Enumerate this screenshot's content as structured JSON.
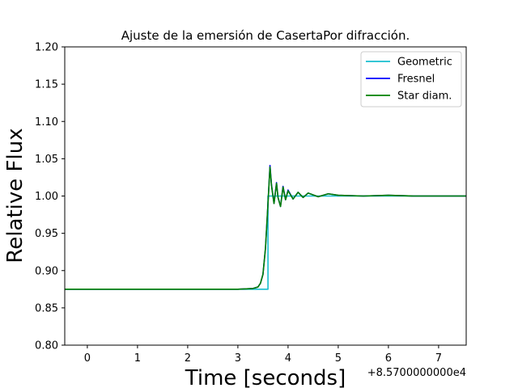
{
  "chart_data": {
    "type": "line",
    "title": "Ajuste de la emersión de CasertaPor difracción.",
    "xlabel": "Time [seconds]",
    "ylabel": "Relative Flux",
    "x_offset_label": "+8.5700000000e4",
    "xlim": [
      -0.45,
      7.55
    ],
    "ylim": [
      0.8,
      1.2
    ],
    "x_ticks": [
      "0",
      "1",
      "2",
      "3",
      "4",
      "5",
      "6",
      "7"
    ],
    "y_ticks": [
      "0.80",
      "0.85",
      "0.90",
      "0.95",
      "1.00",
      "1.05",
      "1.10",
      "1.15",
      "1.20"
    ],
    "grid": false,
    "legend_position": "top-right",
    "series": [
      {
        "name": "Geometric",
        "color": "#17becf",
        "x": [
          -0.45,
          3.55,
          3.55,
          3.6,
          3.6,
          7.55
        ],
        "y": [
          0.875,
          0.875,
          0.875,
          0.875,
          1.0,
          1.0
        ]
      },
      {
        "name": "Fresnel",
        "color": "#0000ff",
        "x": [
          -0.45,
          3.0,
          3.3,
          3.4,
          3.45,
          3.5,
          3.55,
          3.6,
          3.64,
          3.67,
          3.72,
          3.77,
          3.8,
          3.85,
          3.9,
          3.95,
          4.0,
          4.1,
          4.2,
          4.3,
          4.4,
          4.6,
          4.8,
          5.0,
          5.5,
          6.0,
          6.5,
          7.0,
          7.55
        ],
        "y": [
          0.875,
          0.875,
          0.876,
          0.878,
          0.883,
          0.895,
          0.93,
          0.99,
          1.041,
          1.015,
          0.99,
          1.018,
          0.998,
          0.986,
          1.013,
          0.995,
          1.008,
          0.996,
          1.005,
          0.998,
          1.004,
          0.999,
          1.003,
          1.001,
          1.0,
          1.001,
          1.0,
          1.0,
          1.0
        ]
      },
      {
        "name": "Star diam.",
        "color": "#008000",
        "x": [
          -0.45,
          3.0,
          3.3,
          3.4,
          3.45,
          3.5,
          3.55,
          3.6,
          3.64,
          3.67,
          3.72,
          3.77,
          3.8,
          3.85,
          3.9,
          3.95,
          4.0,
          4.1,
          4.2,
          4.3,
          4.4,
          4.6,
          4.8,
          5.0,
          5.5,
          6.0,
          6.5,
          7.0,
          7.55
        ],
        "y": [
          0.875,
          0.875,
          0.876,
          0.878,
          0.883,
          0.895,
          0.93,
          0.99,
          1.039,
          1.014,
          0.99,
          1.017,
          0.998,
          0.986,
          1.012,
          0.995,
          1.007,
          0.996,
          1.005,
          0.998,
          1.004,
          0.999,
          1.003,
          1.001,
          1.0,
          1.001,
          1.0,
          1.0,
          1.0
        ]
      }
    ]
  }
}
